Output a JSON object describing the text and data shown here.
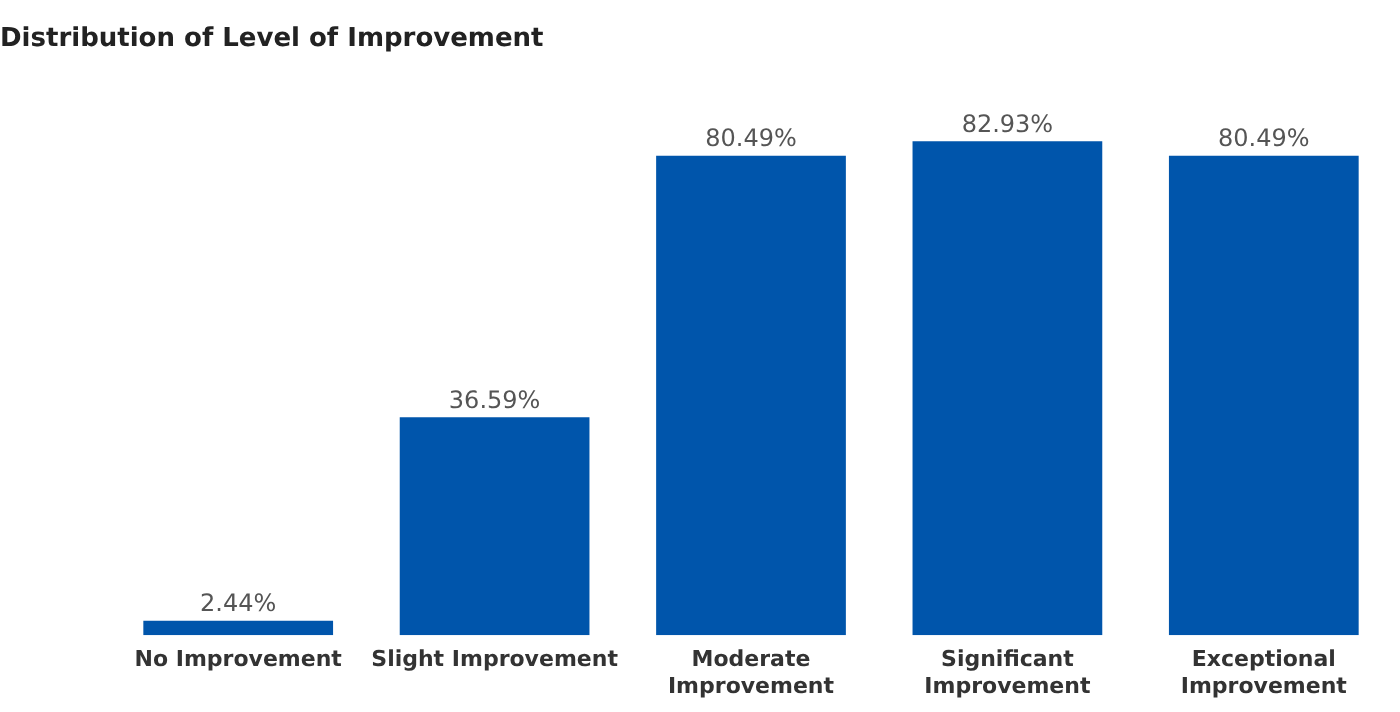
{
  "chart_data": {
    "type": "bar",
    "title": "Distribution of Level of Improvement",
    "categories": [
      "No Improvement",
      "Slight Improvement",
      "Moderate Improvement",
      "Significant Improvement",
      "Exceptional Improvement"
    ],
    "values": [
      2.44,
      36.59,
      80.49,
      82.93,
      80.49
    ],
    "value_labels": [
      "2.44%",
      "36.59%",
      "80.49%",
      "82.93%",
      "80.49%"
    ],
    "color": "#0055ab",
    "grid": false,
    "legend": false
  }
}
